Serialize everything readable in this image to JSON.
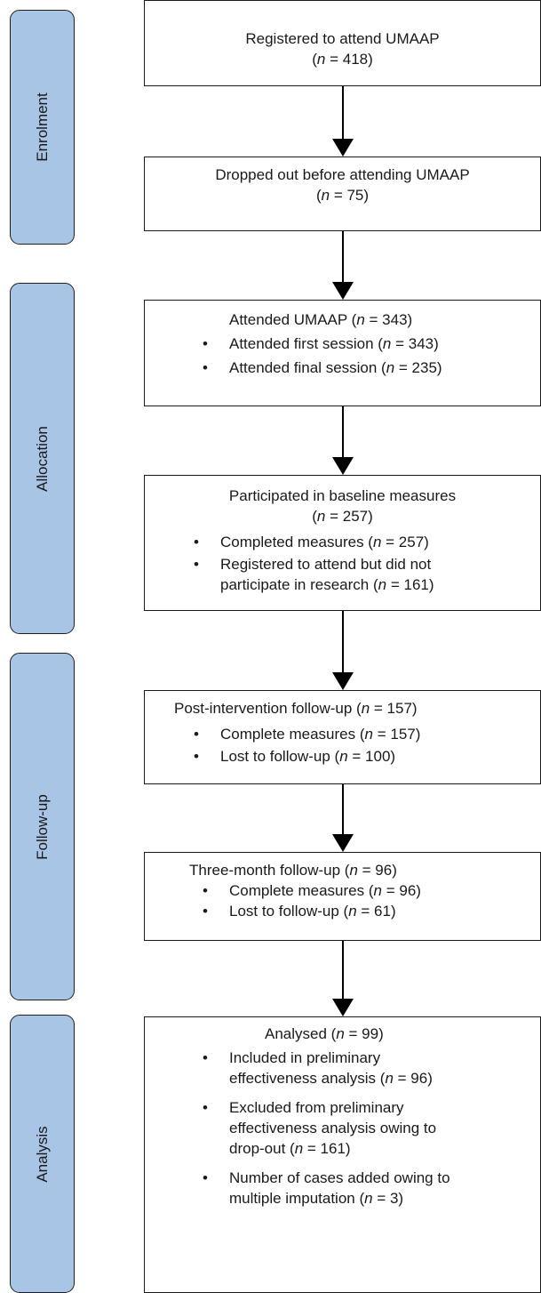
{
  "stages": {
    "enrolment": "Enrolment",
    "allocation": "Allocation",
    "follow_up": "Follow-up",
    "analysis": "Analysis"
  },
  "boxes": {
    "registered": {
      "title": "Registered to attend UMAAP",
      "n_pre": "(",
      "n": "n",
      "n_post": " = 418)"
    },
    "dropped": {
      "title": "Dropped out before attending UMAAP",
      "n_pre": "(",
      "n": "n",
      "n_post": " = 75)"
    },
    "attended": {
      "title_pre": "Attended UMAAP (",
      "n": "n",
      "title_post": " = 343)",
      "bullet": "•",
      "items": [
        {
          "pre": "Attended first session (",
          "n": "n",
          "post": " = 343)"
        },
        {
          "pre": "Attended final session (",
          "n": "n",
          "post": " = 235)"
        }
      ]
    },
    "baseline": {
      "title": "Participated in baseline measures",
      "n_pre": "(",
      "n": "n",
      "n_post": " = 257)",
      "bullet": "•",
      "item1": {
        "pre": "Completed measures (",
        "n": "n",
        "post": " = 257)"
      },
      "item2": {
        "line1": "Registered to attend but did not",
        "line2_pre": "participate in research (",
        "n": "n",
        "line2_post": " = 161)"
      }
    },
    "post": {
      "title_pre": "Post-intervention follow-up (",
      "n": "n",
      "title_post": " = 157)",
      "bullet": "•",
      "items": [
        {
          "pre": "Complete measures (",
          "n": "n",
          "post": " = 157)"
        },
        {
          "pre": "Lost to follow-up (",
          "n": "n",
          "post": " = 100)"
        }
      ]
    },
    "three_month": {
      "title_pre": "Three-month follow-up (",
      "n": "n",
      "title_post": " = 96)",
      "bullet": "•",
      "items": [
        {
          "pre": "Complete measures (",
          "n": "n",
          "post": " = 96)"
        },
        {
          "pre": "Lost to follow-up (",
          "n": "n",
          "post": " = 61)"
        }
      ]
    },
    "analysed": {
      "title_pre": "Analysed (",
      "n": "n",
      "title_post": " = 99)",
      "bullet": "•",
      "item1": {
        "line1": "Included in preliminary",
        "line2_pre": "effectiveness analysis (",
        "n": "n",
        "line2_post": " = 96)"
      },
      "item2": {
        "line1": "Excluded from preliminary",
        "line2": "effectiveness analysis owing to",
        "line3_pre": "drop-out (",
        "n": "n",
        "line3_post": " = 161)"
      },
      "item3": {
        "line1": "Number of cases added owing to",
        "line2_pre": "multiple imputation (",
        "n": "n",
        "line2_post": " = 3)"
      }
    }
  }
}
